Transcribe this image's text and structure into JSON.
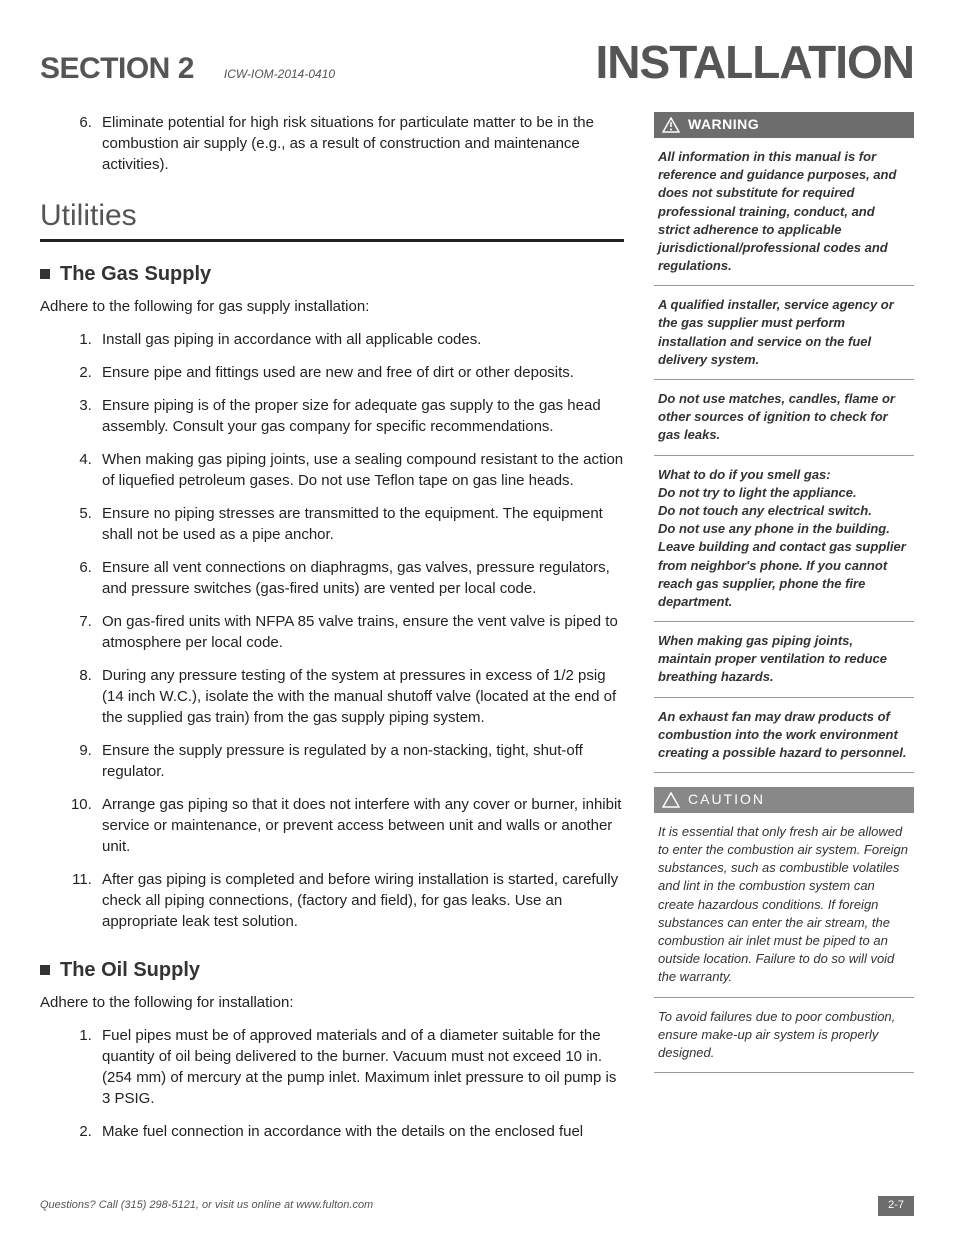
{
  "header": {
    "section_label": "SECTION",
    "section_number": "2",
    "doc_code": "ICW-IOM-2014-0410",
    "page_title": "INSTALLATION"
  },
  "lead_item": {
    "num": "6.",
    "text": "Eliminate potential for high risk situations for particulate matter to be in the combustion air supply (e.g., as a result of construction and maintenance activities)."
  },
  "utilities_heading": "Utilities",
  "gas": {
    "heading": "The Gas Supply",
    "intro": "Adhere to the following for gas supply  installation:",
    "items": [
      "Install gas piping in accordance with all applicable codes.",
      "Ensure pipe and fittings used are new and free of dirt or other deposits.",
      "Ensure piping is of the proper size for adequate gas supply to the gas head assembly.  Consult your gas company for specific recommendations.",
      "When making gas piping joints, use a sealing compound resistant to the action of liquefied petroleum gases.  Do not use Teflon tape on gas line heads.",
      "Ensure no piping stresses are transmitted to the equipment. The equipment shall not be used as a pipe anchor.",
      "Ensure all vent connections on diaphragms, gas valves, pressure regulators, and pressure switches (gas-fired units) are vented per local code.",
      "On gas-fired units with NFPA 85 valve trains, ensure the vent valve is piped to atmosphere per local code.",
      "During any pressure testing of the system at pressures in excess of 1/2 psig (14 inch W.C.), isolate the with the manual shutoff valve (located at the end of the supplied gas train) from the gas supply piping system.",
      "Ensure the supply pressure is regulated by a non-stacking, tight, shut-off regulator.",
      "Arrange gas piping so that it does not interfere with any cover or burner, inhibit service or maintenance, or prevent access between unit and walls or another unit.",
      "After gas piping is completed and before wiring installation is started, carefully check all piping connections, (factory and field), for gas leaks. Use an appropriate leak test solution."
    ]
  },
  "oil": {
    "heading": "The Oil Supply",
    "intro": "Adhere to the following for installation:",
    "items": [
      "Fuel pipes must be of approved materials and of a diameter suitable for the quantity of oil being delivered to the burner.  Vacuum must not exceed 10 in. (254 mm) of mercury at the pump inlet.  Maximum inlet pressure to oil pump is 3 PSIG.",
      "Make fuel connection in accordance with the details on the enclosed fuel"
    ]
  },
  "warning": {
    "label": "WARNING",
    "blocks": [
      "All information in this manual is for reference and guidance purposes, and does not substitute for required professional training, conduct, and strict adherence to applicable jurisdictional/professional codes and regulations.",
      "A qualified installer, service agency or the gas supplier must perform installation and service on the fuel delivery system.",
      "Do not use matches, candles, flame or other sources of ignition to check for gas leaks.",
      "What to do if you smell gas:\nDo not try to light the appliance.\nDo not touch any electrical switch.\nDo not use any phone in the building.\nLeave building and contact gas supplier from neighbor's phone. If you cannot reach gas supplier, phone the fire department.",
      "When making gas piping joints, maintain proper ventilation to reduce breathing hazards.",
      "An exhaust fan may draw products of combustion into the work environment creating a possible hazard to personnel."
    ]
  },
  "caution": {
    "label": "CAUTION",
    "blocks": [
      "It is essential that only fresh air be allowed to enter the combustion air system.  Foreign substances, such as combustible volatiles and lint in the combustion system can create hazardous conditions.  If foreign substances can enter the air stream, the combustion air inlet must be piped to an outside location.  Failure to do so will void the warranty.",
      "To avoid failures due to poor combustion, ensure make-up air system is properly designed."
    ]
  },
  "footer": {
    "text": "Questions?  Call (315) 298-5121, or visit us online at  www.fulton.com",
    "page": "2-7"
  },
  "colors": {
    "header_gray": "#555555",
    "bar_gray": "#6d6d6d",
    "caution_gray": "#888888",
    "text": "#222222"
  }
}
